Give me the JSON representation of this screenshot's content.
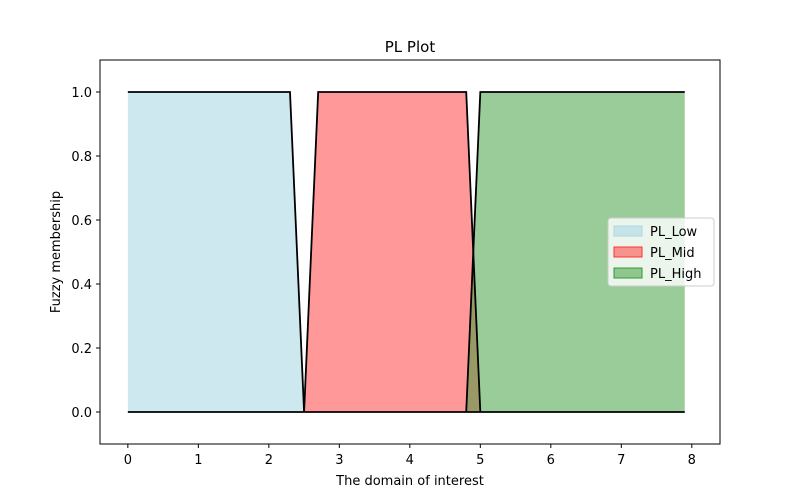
{
  "chart_data": {
    "type": "area",
    "title": "PL Plot",
    "xlabel": "The domain of interest",
    "ylabel": "Fuzzy membership",
    "xlim": [
      -0.395,
      7.9
    ],
    "ylim": [
      -0.1,
      1.1
    ],
    "xticks": [
      0,
      1,
      2,
      3,
      4,
      5,
      6,
      7,
      8
    ],
    "yticks": [
      0.0,
      0.2,
      0.4,
      0.6,
      0.8,
      1.0
    ],
    "grid": false,
    "legend_position": "center-right",
    "series": [
      {
        "name": "PL_Low",
        "color": "#ADD8E6",
        "x": [
          0,
          2.3,
          2.5
        ],
        "y": [
          1,
          1,
          0
        ]
      },
      {
        "name": "PL_Mid",
        "color": "#FF3333",
        "x": [
          2.5,
          2.7,
          4.8,
          5.0
        ],
        "y": [
          0,
          1,
          1,
          0
        ]
      },
      {
        "name": "PL_High",
        "color": "#339933",
        "x": [
          4.8,
          5.0,
          7.9
        ],
        "y": [
          0,
          1,
          1
        ]
      }
    ]
  }
}
